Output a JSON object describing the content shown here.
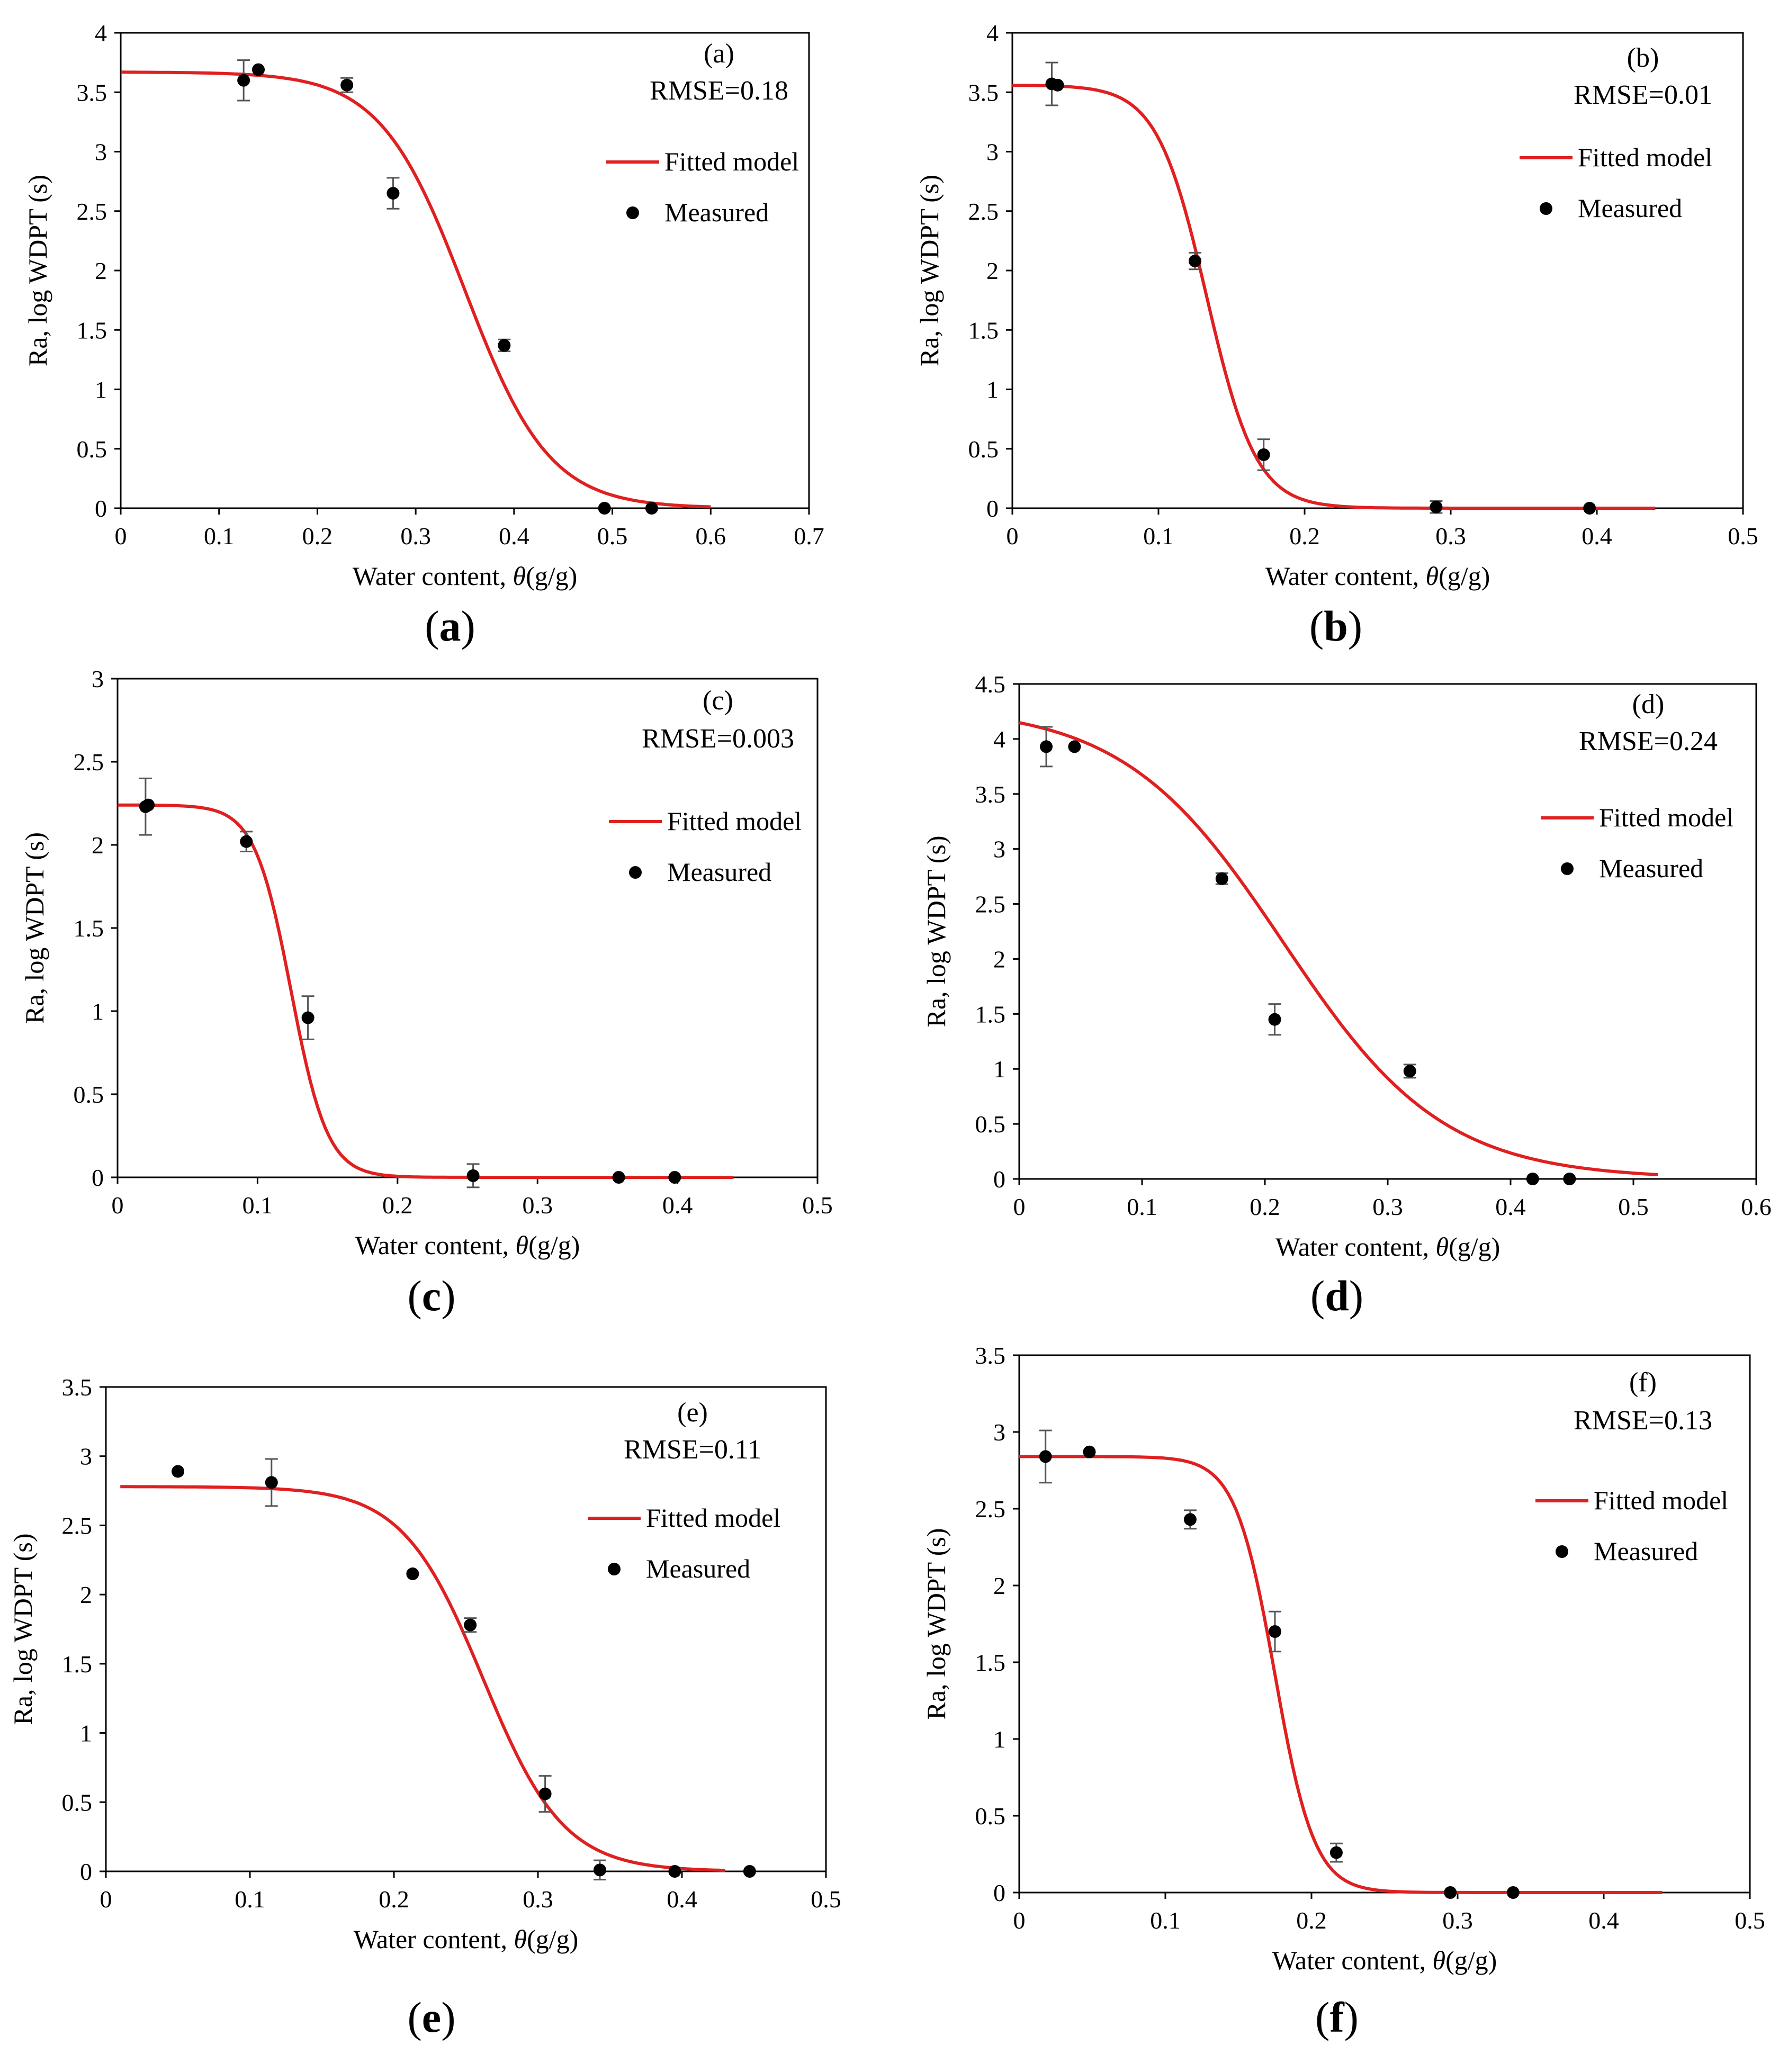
{
  "colors": {
    "fitted": "#e02020",
    "measured": "#000000",
    "errorbar": "#555555",
    "axis": "#000000"
  },
  "chart_data": [
    {
      "type": "scatter",
      "panel_label": "(a)",
      "caption_letter": "a",
      "metric_label": "RMSE=0.18",
      "xlabel": "Water content, ",
      "xlabel_symbol": "θ",
      "xlabel_unit": "(g/g)",
      "ylabel": "Ra, log WDPT (s)",
      "xlim": [
        0,
        0.7
      ],
      "ylim": [
        0,
        4
      ],
      "xticks": [
        0,
        0.1,
        0.2,
        0.3,
        0.4,
        0.5,
        0.6,
        0.7
      ],
      "xtick_labels": [
        "0",
        "0.1",
        "0.2",
        "0.3",
        "0.4",
        "0.5",
        "0.6",
        "0.7"
      ],
      "yticks": [
        0,
        0.5,
        1,
        1.5,
        2,
        2.5,
        3,
        3.5,
        4
      ],
      "ytick_labels": [
        "0",
        "0.5",
        "1",
        "1.5",
        "2",
        "2.5",
        "3",
        "3.5",
        "4"
      ],
      "grid": false,
      "legend": {
        "position": "top-right",
        "fitted_label": "Fitted model",
        "measured_label": "Measured"
      },
      "fitted": {
        "name": "Fitted model",
        "amplitude": 3.67,
        "midpoint": 0.35,
        "steepness": 0.043,
        "x_range": [
          0,
          0.6
        ]
      },
      "measured": [
        {
          "x": 0.125,
          "y": 3.6,
          "err": 0.17
        },
        {
          "x": 0.14,
          "y": 3.69,
          "err": 0
        },
        {
          "x": 0.23,
          "y": 3.56,
          "err": 0.06
        },
        {
          "x": 0.277,
          "y": 2.65,
          "err": 0.13
        },
        {
          "x": 0.39,
          "y": 1.37,
          "err": 0.05
        },
        {
          "x": 0.492,
          "y": 0.0,
          "err": 0
        },
        {
          "x": 0.54,
          "y": 0.0,
          "err": 0
        }
      ]
    },
    {
      "type": "scatter",
      "panel_label": "(b)",
      "caption_letter": "b",
      "metric_label": "RMSE=0.01",
      "xlabel": "Water content, ",
      "xlabel_symbol": "θ",
      "xlabel_unit": "(g/g)",
      "ylabel": "Ra, log WDPT (s)",
      "xlim": [
        0,
        0.5
      ],
      "ylim": [
        0,
        4
      ],
      "xticks": [
        0,
        0.1,
        0.2,
        0.3,
        0.4,
        0.5
      ],
      "xtick_labels": [
        "0",
        "0.1",
        "0.2",
        "0.3",
        "0.4",
        "0.5"
      ],
      "yticks": [
        0,
        0.5,
        1,
        1.5,
        2,
        2.5,
        3,
        3.5,
        4
      ],
      "ytick_labels": [
        "0",
        "0.5",
        "1",
        "1.5",
        "2",
        "2.5",
        "3",
        "3.5",
        "4"
      ],
      "grid": false,
      "legend": {
        "position": "top-right",
        "fitted_label": "Fitted model",
        "measured_label": "Measured"
      },
      "fitted": {
        "name": "Fitted model",
        "amplitude": 3.56,
        "midpoint": 0.133,
        "steepness": 0.017,
        "x_range": [
          0,
          0.44
        ]
      },
      "measured": [
        {
          "x": 0.027,
          "y": 3.57,
          "err": 0.18
        },
        {
          "x": 0.031,
          "y": 3.56,
          "err": 0
        },
        {
          "x": 0.125,
          "y": 2.08,
          "err": 0.07
        },
        {
          "x": 0.172,
          "y": 0.45,
          "err": 0.13
        },
        {
          "x": 0.29,
          "y": 0.01,
          "err": 0.05
        },
        {
          "x": 0.395,
          "y": 0.0,
          "err": 0
        }
      ]
    },
    {
      "type": "scatter",
      "panel_label": "(c)",
      "caption_letter": "c",
      "metric_label": "RMSE=0.003",
      "xlabel": "Water content, ",
      "xlabel_symbol": "θ",
      "xlabel_unit": "(g/g)",
      "ylabel": "Ra, log WDPT (s)",
      "xlim": [
        0,
        0.5
      ],
      "ylim": [
        0,
        3
      ],
      "xticks": [
        0,
        0.1,
        0.2,
        0.3,
        0.4,
        0.5
      ],
      "xtick_labels": [
        "0",
        "0.1",
        "0.2",
        "0.3",
        "0.4",
        "0.5"
      ],
      "yticks": [
        0,
        0.5,
        1,
        1.5,
        2,
        2.5,
        3
      ],
      "ytick_labels": [
        "0",
        "0.5",
        "1",
        "1.5",
        "2",
        "2.5",
        "3"
      ],
      "grid": false,
      "legend": {
        "position": "top-right",
        "fitted_label": "Fitted model",
        "measured_label": "Measured"
      },
      "fitted": {
        "name": "Fitted model",
        "amplitude": 2.24,
        "midpoint": 0.124,
        "steepness": 0.013,
        "x_range": [
          0,
          0.44
        ]
      },
      "measured": [
        {
          "x": 0.02,
          "y": 2.23,
          "err": 0.17
        },
        {
          "x": 0.022,
          "y": 2.24,
          "err": 0
        },
        {
          "x": 0.092,
          "y": 2.02,
          "err": 0.06
        },
        {
          "x": 0.136,
          "y": 0.96,
          "err": 0.13
        },
        {
          "x": 0.254,
          "y": 0.01,
          "err": 0.07
        },
        {
          "x": 0.358,
          "y": 0.0,
          "err": 0
        },
        {
          "x": 0.398,
          "y": 0.0,
          "err": 0
        }
      ]
    },
    {
      "type": "scatter",
      "panel_label": "(d)",
      "caption_letter": "d",
      "metric_label": "RMSE=0.24",
      "xlabel": "Water content, ",
      "xlabel_symbol": "θ",
      "xlabel_unit": "(g/g)",
      "ylabel": "Ra, log WDPT (s)",
      "xlim": [
        0,
        0.6
      ],
      "ylim": [
        0,
        4.5
      ],
      "xticks": [
        0,
        0.1,
        0.2,
        0.3,
        0.4,
        0.5,
        0.6
      ],
      "xtick_labels": [
        "0",
        "0.1",
        "0.2",
        "0.3",
        "0.4",
        "0.5",
        "0.6"
      ],
      "yticks": [
        0,
        0.5,
        1,
        1.5,
        2,
        2.5,
        3,
        3.5,
        4,
        4.5
      ],
      "ytick_labels": [
        "0",
        "0.5",
        "1",
        "1.5",
        "2",
        "2.5",
        "3",
        "3.5",
        "4",
        "4.5"
      ],
      "grid": false,
      "legend": {
        "position": "top-right",
        "fitted_label": "Fitted model",
        "measured_label": "Measured"
      },
      "fitted": {
        "name": "Fitted model",
        "amplitude": 4.3,
        "midpoint": 0.215,
        "steepness": 0.065,
        "x_range": [
          0,
          0.52
        ]
      },
      "measured": [
        {
          "x": 0.022,
          "y": 3.93,
          "err": 0.18
        },
        {
          "x": 0.045,
          "y": 3.93,
          "err": 0
        },
        {
          "x": 0.165,
          "y": 2.73,
          "err": 0.05
        },
        {
          "x": 0.208,
          "y": 1.45,
          "err": 0.14
        },
        {
          "x": 0.318,
          "y": 0.98,
          "err": 0.06
        },
        {
          "x": 0.418,
          "y": 0.0,
          "err": 0
        },
        {
          "x": 0.448,
          "y": 0.0,
          "err": 0
        }
      ]
    },
    {
      "type": "scatter",
      "panel_label": "(e)",
      "caption_letter": "e",
      "metric_label": "RMSE=0.11",
      "xlabel": "Water content, ",
      "xlabel_symbol": "θ",
      "xlabel_unit": "(g/g)",
      "ylabel": "Ra, log WDPT (s)",
      "xlim": [
        0,
        0.5
      ],
      "ylim": [
        0,
        3.5
      ],
      "xticks": [
        0,
        0.1,
        0.2,
        0.3,
        0.4,
        0.5
      ],
      "xtick_labels": [
        "0",
        "0.1",
        "0.2",
        "0.3",
        "0.4",
        "0.5"
      ],
      "yticks": [
        0,
        0.5,
        1,
        1.5,
        2,
        2.5,
        3,
        3.5
      ],
      "ytick_labels": [
        "0",
        "0.5",
        "1",
        "1.5",
        "2",
        "2.5",
        "3",
        "3.5"
      ],
      "grid": false,
      "legend": {
        "position": "top-right",
        "fitted_label": "Fitted model",
        "measured_label": "Measured"
      },
      "fitted": {
        "name": "Fitted model",
        "amplitude": 2.78,
        "midpoint": 0.262,
        "steepness": 0.028,
        "x_range": [
          0.01,
          0.43
        ]
      },
      "measured": [
        {
          "x": 0.05,
          "y": 2.89,
          "err": 0
        },
        {
          "x": 0.115,
          "y": 2.81,
          "err": 0.17
        },
        {
          "x": 0.213,
          "y": 2.15,
          "err": 0
        },
        {
          "x": 0.253,
          "y": 1.78,
          "err": 0.05
        },
        {
          "x": 0.305,
          "y": 0.56,
          "err": 0.13
        },
        {
          "x": 0.343,
          "y": 0.01,
          "err": 0.07
        },
        {
          "x": 0.395,
          "y": 0.0,
          "err": 0
        },
        {
          "x": 0.447,
          "y": 0.0,
          "err": 0
        }
      ]
    },
    {
      "type": "scatter",
      "panel_label": "(f)",
      "caption_letter": "f",
      "metric_label": "RMSE=0.13",
      "xlabel": "Water content, ",
      "xlabel_symbol": "θ",
      "xlabel_unit": "(g/g)",
      "ylabel": "Ra, log WDPT (s)",
      "xlim": [
        0,
        0.5
      ],
      "ylim": [
        0,
        3.5
      ],
      "xticks": [
        0,
        0.1,
        0.2,
        0.3,
        0.4,
        0.5
      ],
      "xtick_labels": [
        "0",
        "0.1",
        "0.2",
        "0.3",
        "0.4",
        "0.5"
      ],
      "yticks": [
        0,
        0.5,
        1,
        1.5,
        2,
        2.5,
        3,
        3.5
      ],
      "ytick_labels": [
        "0",
        "0.5",
        "1",
        "1.5",
        "2",
        "2.5",
        "3",
        "3.5"
      ],
      "grid": false,
      "legend": {
        "position": "top-right",
        "fitted_label": "Fitted model",
        "measured_label": "Measured"
      },
      "fitted": {
        "name": "Fitted model",
        "amplitude": 2.84,
        "midpoint": 0.175,
        "steepness": 0.0135,
        "x_range": [
          0,
          0.44
        ]
      },
      "measured": [
        {
          "x": 0.018,
          "y": 2.84,
          "err": 0.17
        },
        {
          "x": 0.048,
          "y": 2.87,
          "err": 0
        },
        {
          "x": 0.117,
          "y": 2.43,
          "err": 0.06
        },
        {
          "x": 0.175,
          "y": 1.7,
          "err": 0.13
        },
        {
          "x": 0.217,
          "y": 0.26,
          "err": 0.06
        },
        {
          "x": 0.295,
          "y": 0.0,
          "err": 0
        },
        {
          "x": 0.338,
          "y": 0.0,
          "err": 0
        }
      ]
    }
  ]
}
